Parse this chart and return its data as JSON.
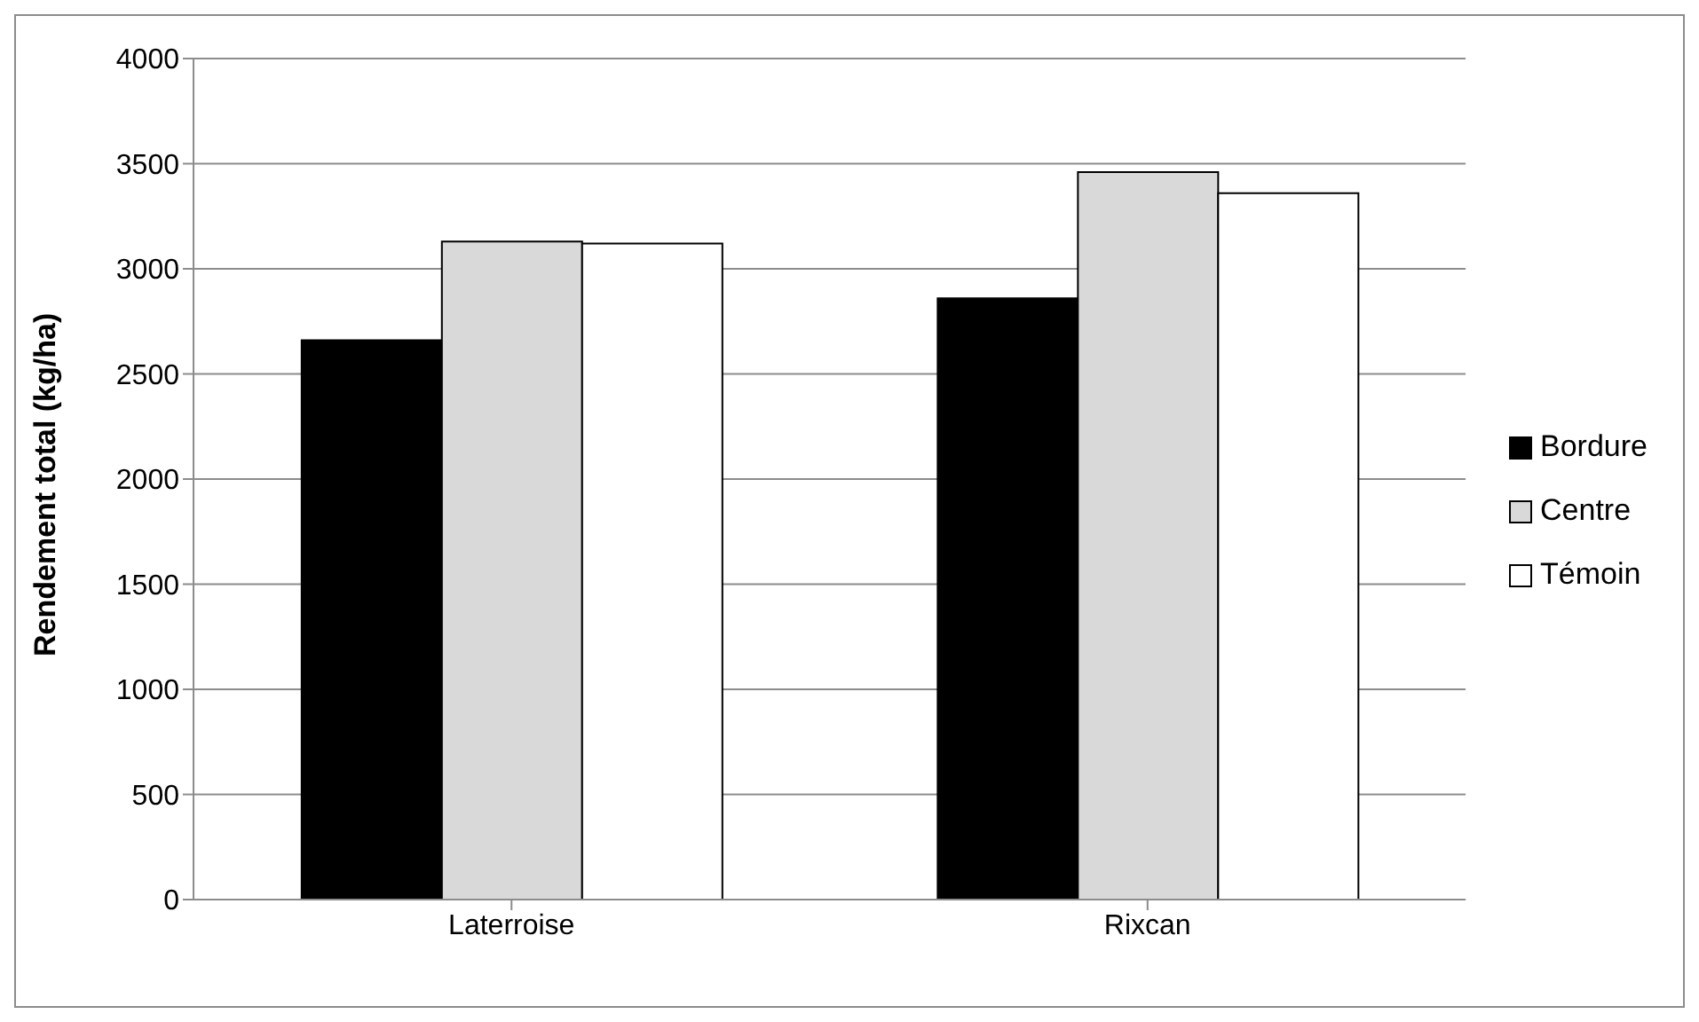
{
  "chart_data": {
    "type": "bar",
    "ylabel": "Rendement total (kg/ha)",
    "categories": [
      "Laterroise",
      "Rixcan"
    ],
    "series": [
      {
        "name": "Bordure",
        "color": "#000000",
        "values": [
          2660,
          2860
        ]
      },
      {
        "name": "Centre",
        "color": "#d9d9d9",
        "values": [
          3130,
          3460
        ]
      },
      {
        "name": "Témoin",
        "color": "#ffffff",
        "values": [
          3120,
          3360
        ]
      }
    ],
    "ylim": [
      0,
      4000
    ],
    "yticks": [
      0,
      500,
      1000,
      1500,
      2000,
      2500,
      3000,
      3500,
      4000
    ],
    "grid": "y",
    "legend": "right"
  }
}
